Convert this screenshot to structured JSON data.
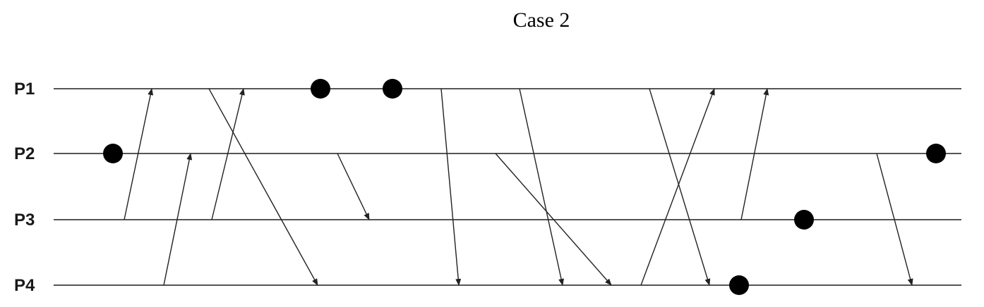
{
  "title": "Case 2",
  "processes": [
    {
      "id": "P1",
      "label": "P1"
    },
    {
      "id": "P2",
      "label": "P2"
    },
    {
      "id": "P3",
      "label": "P3"
    },
    {
      "id": "P4",
      "label": "P4"
    }
  ],
  "messages": [
    {
      "from": "P3",
      "to": "P1"
    },
    {
      "from": "P4",
      "to": "P2"
    },
    {
      "from": "P3",
      "to": "P1"
    },
    {
      "from": "P1",
      "to": "P4"
    },
    {
      "from": "P2",
      "to": "P3"
    },
    {
      "from": "P1",
      "to": "P4"
    },
    {
      "from": "P1",
      "to": "P4"
    },
    {
      "from": "P2",
      "to": "P4"
    },
    {
      "from": "P1",
      "to": "P4"
    },
    {
      "from": "P4",
      "to": "P1"
    },
    {
      "from": "P3",
      "to": "P1"
    },
    {
      "from": "P2",
      "to": "P4"
    }
  ],
  "events": [
    {
      "process": "P2"
    },
    {
      "process": "P1"
    },
    {
      "process": "P1"
    },
    {
      "process": "P4"
    },
    {
      "process": "P3"
    },
    {
      "process": "P2"
    }
  ]
}
